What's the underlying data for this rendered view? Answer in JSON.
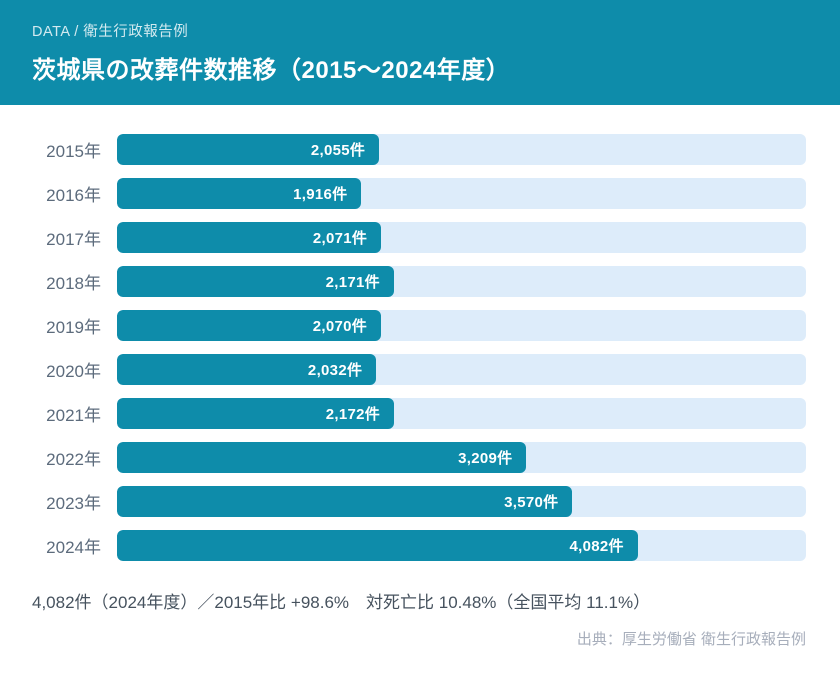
{
  "header": {
    "category": "DATA / 衛生行政報告例",
    "title": "茨城県の改葬件数推移（2015〜2024年度）"
  },
  "chart_data": {
    "type": "bar",
    "orientation": "horizontal",
    "title": "茨城県の改葬件数推移（2015〜2024年度）",
    "categories": [
      "2015年",
      "2016年",
      "2017年",
      "2018年",
      "2019年",
      "2020年",
      "2021年",
      "2022年",
      "2023年",
      "2024年"
    ],
    "values": [
      2055,
      1916,
      2071,
      2171,
      2070,
      2032,
      2172,
      3209,
      3570,
      4082
    ],
    "value_labels": [
      "2,055件",
      "1,916件",
      "2,071件",
      "2,171件",
      "2,070件",
      "2,032件",
      "2,172件",
      "3,209件",
      "3,570件",
      "4,082件"
    ],
    "unit": "件",
    "xlim": [
      0,
      5400
    ],
    "grid": false,
    "legend": "none",
    "bar_color": "#0e8caa",
    "track_color": "#ddecfa"
  },
  "summary": "4,082件（2024年度）／2015年比 +98.6%　対死亡比 10.48%（全国平均 11.1%）",
  "source": "出典：厚生労働省 衛生行政報告例",
  "colors": {
    "header_background": "#0e8caa",
    "bar": "#0e8caa",
    "bar_track": "#ddecfa",
    "year_label": "#5c6b7c",
    "summary_text": "#46525e",
    "source_text": "#a7aebb"
  }
}
